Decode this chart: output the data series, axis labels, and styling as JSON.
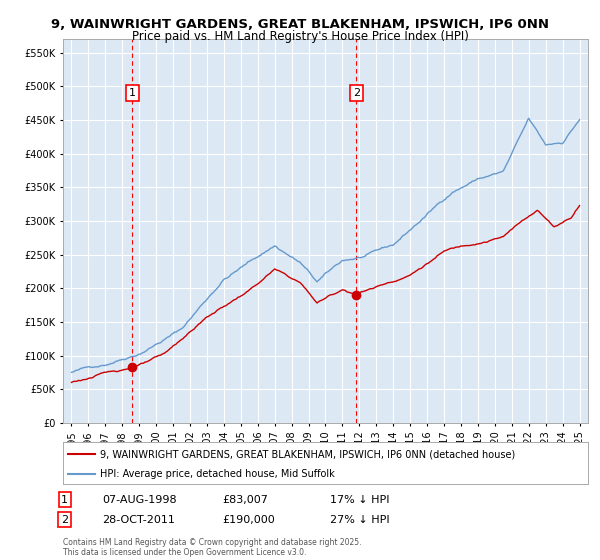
{
  "title_line1": "9, WAINWRIGHT GARDENS, GREAT BLAKENHAM, IPSWICH, IP6 0NN",
  "title_line2": "Price paid vs. HM Land Registry's House Price Index (HPI)",
  "legend_red": "9, WAINWRIGHT GARDENS, GREAT BLAKENHAM, IPSWICH, IP6 0NN (detached house)",
  "legend_blue": "HPI: Average price, detached house, Mid Suffolk",
  "annotation1_date": "07-AUG-1998",
  "annotation1_price": "£83,007",
  "annotation1_hpi": "17% ↓ HPI",
  "annotation2_date": "28-OCT-2011",
  "annotation2_price": "£190,000",
  "annotation2_hpi": "27% ↓ HPI",
  "footer": "Contains HM Land Registry data © Crown copyright and database right 2025.\nThis data is licensed under the Open Government Licence v3.0.",
  "plot_bg": "#dce9f5",
  "red_color": "#cc0000",
  "blue_color": "#6699cc",
  "ylim": [
    0,
    570000
  ],
  "yticks": [
    0,
    50000,
    100000,
    150000,
    200000,
    250000,
    300000,
    350000,
    400000,
    450000,
    500000,
    550000
  ],
  "sale1_year": 1998.6,
  "sale1_price": 83007,
  "sale2_year": 2011.83,
  "sale2_price": 190000,
  "hpi_anchors_y": [
    1995.0,
    1997.0,
    1999.0,
    2001.5,
    2004.0,
    2007.0,
    2008.5,
    2009.5,
    2011.0,
    2012.5,
    2014.0,
    2016.0,
    2017.5,
    2019.0,
    2020.5,
    2022.0,
    2023.0,
    2024.0,
    2025.0
  ],
  "hpi_anchors_v": [
    75000,
    88000,
    108000,
    145000,
    220000,
    270000,
    245000,
    215000,
    245000,
    252000,
    265000,
    310000,
    345000,
    365000,
    375000,
    450000,
    410000,
    415000,
    450000
  ],
  "red_anchors_y": [
    1995.0,
    1997.0,
    1998.6,
    2000.5,
    2003.0,
    2005.5,
    2007.0,
    2008.5,
    2009.5,
    2011.0,
    2011.83,
    2013.0,
    2015.0,
    2017.0,
    2019.0,
    2020.5,
    2021.5,
    2022.5,
    2023.5,
    2024.5,
    2025.0
  ],
  "red_anchors_v": [
    60000,
    73000,
    83007,
    100000,
    155000,
    195000,
    225000,
    205000,
    175000,
    195000,
    190000,
    200000,
    220000,
    255000,
    270000,
    280000,
    300000,
    320000,
    295000,
    310000,
    330000
  ]
}
